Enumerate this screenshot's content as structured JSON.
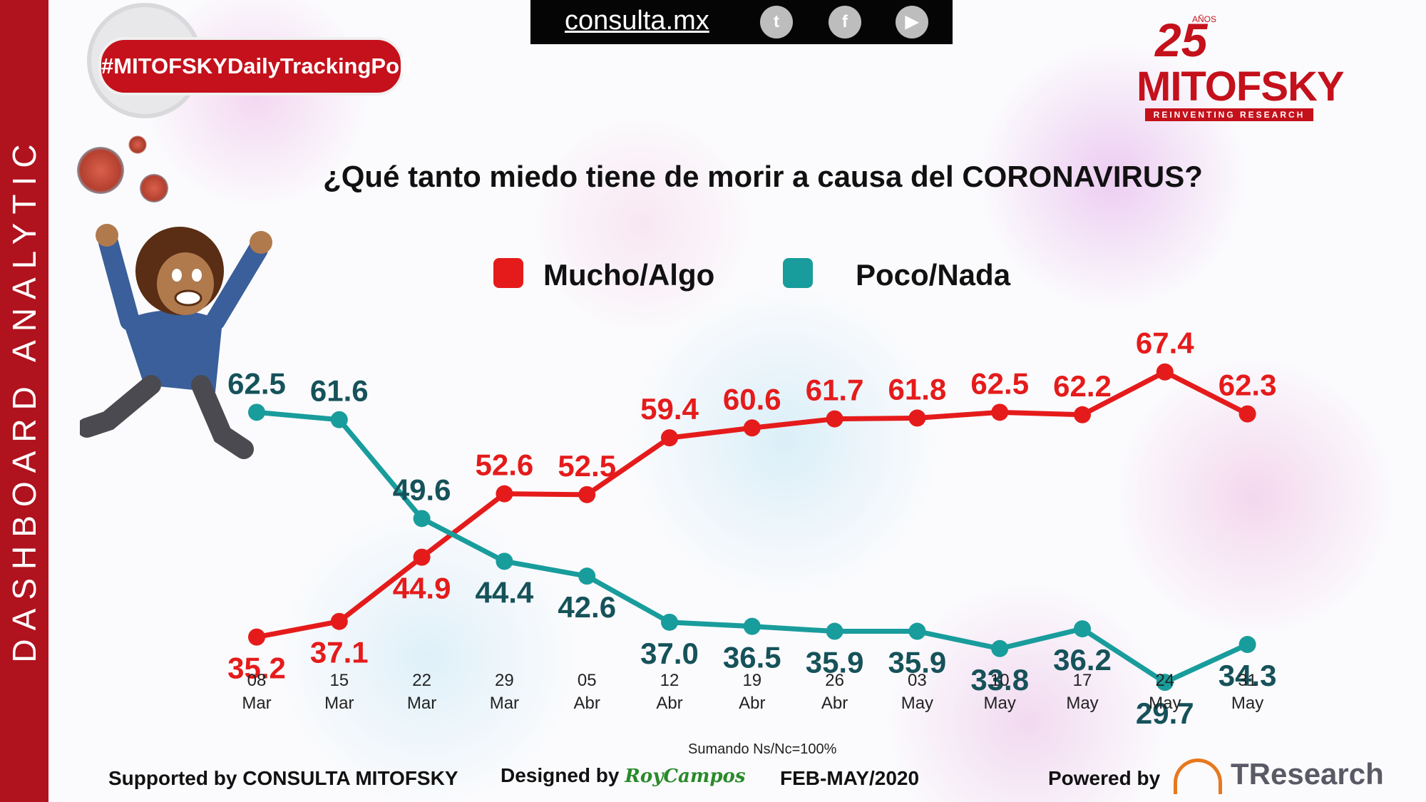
{
  "sidebar": {
    "label": "DASHBOARD ANALYTIC"
  },
  "hashtag": {
    "label": "#MITOFSKYDailyTrackingPoll"
  },
  "topbar": {
    "site": "consulta.mx",
    "icons": [
      "twitter-icon",
      "facebook-icon",
      "youtube-icon"
    ]
  },
  "logo": {
    "years": "25",
    "anos": "AÑOS",
    "name": "MITOFSKY",
    "tagline": "REINVENTING RESEARCH"
  },
  "footer": {
    "note": "Sumando Ns/Nc=100%",
    "supported": "Supported by  CONSULTA  MITOFSKY",
    "designed": "Designed by",
    "designer": "RoyCampos",
    "period": "FEB-MAY/2020",
    "powered": "Powered by",
    "powered_brand": "TResearch"
  },
  "colors": {
    "mucho": "#e51b1b",
    "poco": "#199c9c",
    "poco_label": "#16525a",
    "brand": "#c4111b"
  },
  "chart_data": {
    "type": "line",
    "title": "¿Qué tanto miedo tiene de morir a causa del CORONAVIRUS?",
    "categories": [
      [
        "08",
        "Mar"
      ],
      [
        "15",
        "Mar"
      ],
      [
        "22",
        "Mar"
      ],
      [
        "29",
        "Mar"
      ],
      [
        "05",
        "Abr"
      ],
      [
        "12",
        "Abr"
      ],
      [
        "19",
        "Abr"
      ],
      [
        "26",
        "Abr"
      ],
      [
        "03",
        "May"
      ],
      [
        "10",
        "May"
      ],
      [
        "17",
        "May"
      ],
      [
        "24",
        "May"
      ],
      [
        "31",
        "May"
      ]
    ],
    "series": [
      {
        "name": "Mucho/Algo",
        "values": [
          35.2,
          37.1,
          44.9,
          52.6,
          52.5,
          59.4,
          60.6,
          61.7,
          61.8,
          62.5,
          62.2,
          67.4,
          62.3
        ],
        "labels": [
          "35.2",
          "37.1",
          "44.9",
          "52.6",
          "52.5",
          "59.4",
          "60.6",
          "61.7",
          "61.8",
          "62.5",
          "62.2",
          "67.4",
          "62.3"
        ]
      },
      {
        "name": "Poco/Nada",
        "values": [
          62.5,
          61.6,
          49.6,
          44.4,
          42.6,
          37.0,
          36.5,
          35.9,
          35.9,
          33.8,
          36.2,
          29.7,
          34.3
        ],
        "labels": [
          "62.5",
          "61.6",
          "49.6",
          "44.4",
          "42.6",
          "37.0",
          "36.5",
          "35.9",
          "35.9",
          "33.8",
          "36.2",
          "29.7",
          "34.3"
        ]
      }
    ],
    "legend_position": "top-center",
    "grid": false
  }
}
